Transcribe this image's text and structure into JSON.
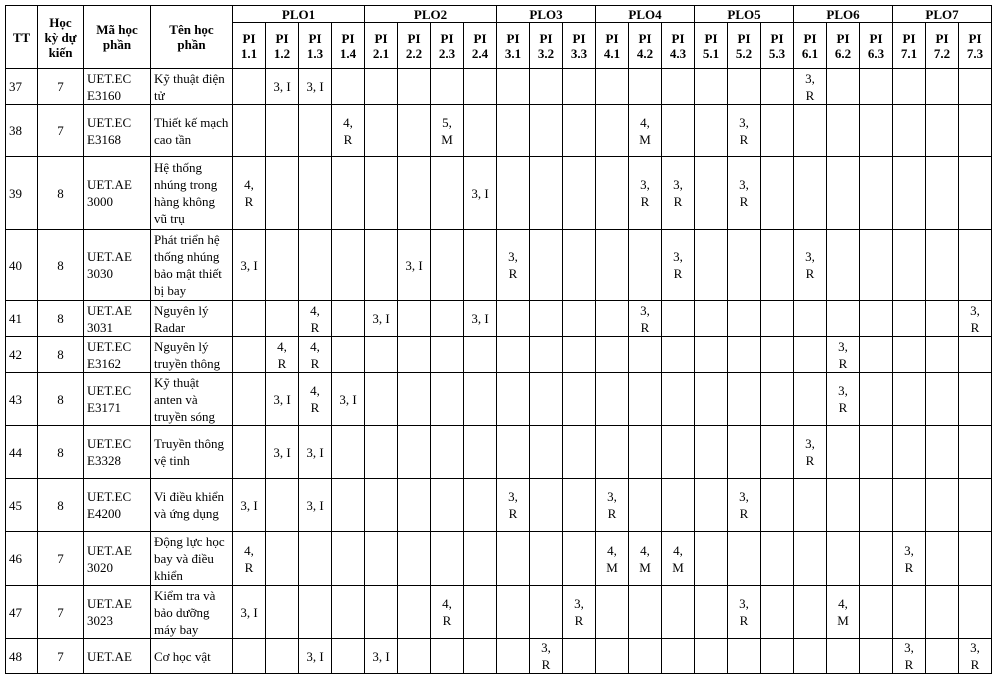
{
  "headers": {
    "tt": "TT",
    "semester": "Học kỳ dự kiến",
    "code": "Mã học phần",
    "name": "Tên học phần"
  },
  "plo_groups": [
    {
      "label": "PLO1",
      "pis": [
        "PI 1.1",
        "PI 1.2",
        "PI 1.3",
        "PI 1.4"
      ]
    },
    {
      "label": "PLO2",
      "pis": [
        "PI 2.1",
        "PI 2.2",
        "PI 2.3",
        "PI 2.4"
      ]
    },
    {
      "label": "PLO3",
      "pis": [
        "PI 3.1",
        "PI 3.2",
        "PI 3.3"
      ]
    },
    {
      "label": "PLO4",
      "pis": [
        "PI 4.1",
        "PI 4.2",
        "PI 4.3"
      ]
    },
    {
      "label": "PLO5",
      "pis": [
        "PI 5.1",
        "PI 5.2",
        "PI 5.3"
      ]
    },
    {
      "label": "PLO6",
      "pis": [
        "PI 6.1",
        "PI 6.2",
        "PI 6.3"
      ]
    },
    {
      "label": "PLO7",
      "pis": [
        "PI 7.1",
        "PI 7.2",
        "PI 7.3"
      ]
    }
  ],
  "rows": [
    {
      "tt": "37",
      "semester": "7",
      "code": "UET.EC E3160",
      "name": "Kỹ thuật điện tử",
      "pi": [
        "",
        "3, I",
        "3, I",
        "",
        "",
        "",
        "",
        "",
        "",
        "",
        "",
        "",
        "",
        "",
        "",
        "",
        "",
        "3,\nR",
        "",
        "",
        "",
        "",
        ""
      ]
    },
    {
      "tt": "38",
      "semester": "7",
      "code": "UET.EC E3168",
      "name": "Thiết kế mạch cao tần",
      "pi": [
        "",
        "",
        "",
        "4,\nR",
        "",
        "",
        "5,\nM",
        "",
        "",
        "",
        "",
        "",
        "4,\nM",
        "",
        "",
        "3,\nR",
        "",
        "",
        "",
        "",
        "",
        "",
        ""
      ]
    },
    {
      "tt": "39",
      "semester": "8",
      "code": "UET.AE 3000",
      "name": "Hệ thống nhúng trong hàng không vũ trụ",
      "pi": [
        "4,\nR",
        "",
        "",
        "",
        "",
        "",
        "",
        "3, I",
        "",
        "",
        "",
        "",
        "3,\nR",
        "3,\nR",
        "",
        "3,\nR",
        "",
        "",
        "",
        "",
        "",
        "",
        ""
      ]
    },
    {
      "tt": "40",
      "semester": "8",
      "code": "UET.AE 3030",
      "name": "Phát triển hệ thống nhúng bảo mật thiết bị bay",
      "pi": [
        "3, I",
        "",
        "",
        "",
        "",
        "3, I",
        "",
        "",
        "3,\nR",
        "",
        "",
        "",
        "",
        "3,\nR",
        "",
        "",
        "",
        "3,\nR",
        "",
        "",
        "",
        "",
        ""
      ]
    },
    {
      "tt": "41",
      "semester": "8",
      "code": "UET.AE 3031",
      "name": "Nguyên lý Radar",
      "pi": [
        "",
        "",
        "4,\nR",
        "",
        "3, I",
        "",
        "",
        "3, I",
        "",
        "",
        "",
        "",
        "3,\nR",
        "",
        "",
        "",
        "",
        "",
        "",
        "",
        "",
        "",
        "3,\nR"
      ]
    },
    {
      "tt": "42",
      "semester": "8",
      "code": "UET.EC E3162",
      "name": "Nguyên lý truyền thông",
      "pi": [
        "",
        "4,\nR",
        "4,\nR",
        "",
        "",
        "",
        "",
        "",
        "",
        "",
        "",
        "",
        "",
        "",
        "",
        "",
        "",
        "",
        "3,\nR",
        "",
        "",
        "",
        ""
      ]
    },
    {
      "tt": "43",
      "semester": "8",
      "code": "UET.EC E3171",
      "name": "Kỹ thuật anten và truyền sóng",
      "pi": [
        "",
        "3, I",
        "4,\nR",
        "3, I",
        "",
        "",
        "",
        "",
        "",
        "",
        "",
        "",
        "",
        "",
        "",
        "",
        "",
        "",
        "3,\nR",
        "",
        "",
        "",
        ""
      ]
    },
    {
      "tt": "44",
      "semester": "8",
      "code": "UET.EC E3328",
      "name": "Truyền thông vệ tinh",
      "pi": [
        "",
        "3, I",
        "3, I",
        "",
        "",
        "",
        "",
        "",
        "",
        "",
        "",
        "",
        "",
        "",
        "",
        "",
        "",
        "3,\nR",
        "",
        "",
        "",
        "",
        ""
      ]
    },
    {
      "tt": "45",
      "semester": "8",
      "code": "UET.EC E4200",
      "name": "Vi điều khiển và ứng dụng",
      "pi": [
        "3, I",
        "",
        "3, I",
        "",
        "",
        "",
        "",
        "",
        "3,\nR",
        "",
        "",
        "3,\nR",
        "",
        "",
        "",
        "3,\nR",
        "",
        "",
        "",
        "",
        "",
        "",
        ""
      ]
    },
    {
      "tt": "46",
      "semester": "7",
      "code": "UET.AE 3020",
      "name": "Động lực học bay và điều khiển",
      "pi": [
        "4,\nR",
        "",
        "",
        "",
        "",
        "",
        "",
        "",
        "",
        "",
        "",
        "4,\nM",
        "4,\nM",
        "4,\nM",
        "",
        "",
        "",
        "",
        "",
        "",
        "3,\nR",
        "",
        ""
      ]
    },
    {
      "tt": "47",
      "semester": "7",
      "code": "UET.AE 3023",
      "name": "Kiểm tra và bảo dưỡng máy bay",
      "pi": [
        "3, I",
        "",
        "",
        "",
        "",
        "",
        "4,\nR",
        "",
        "",
        "",
        "3,\nR",
        "",
        "",
        "",
        "",
        "3,\nR",
        "",
        "",
        "4,\nM",
        "",
        "",
        "",
        ""
      ]
    },
    {
      "tt": "48",
      "semester": "7",
      "code": "UET.AE",
      "name": "Cơ học vật",
      "pi": [
        "",
        "",
        "3, I",
        "",
        "3, I",
        "",
        "",
        "",
        "",
        "3,\nR",
        "",
        "",
        "",
        "",
        "",
        "",
        "",
        "",
        "",
        "",
        "3,\nR",
        "",
        "3,\nR"
      ]
    }
  ]
}
